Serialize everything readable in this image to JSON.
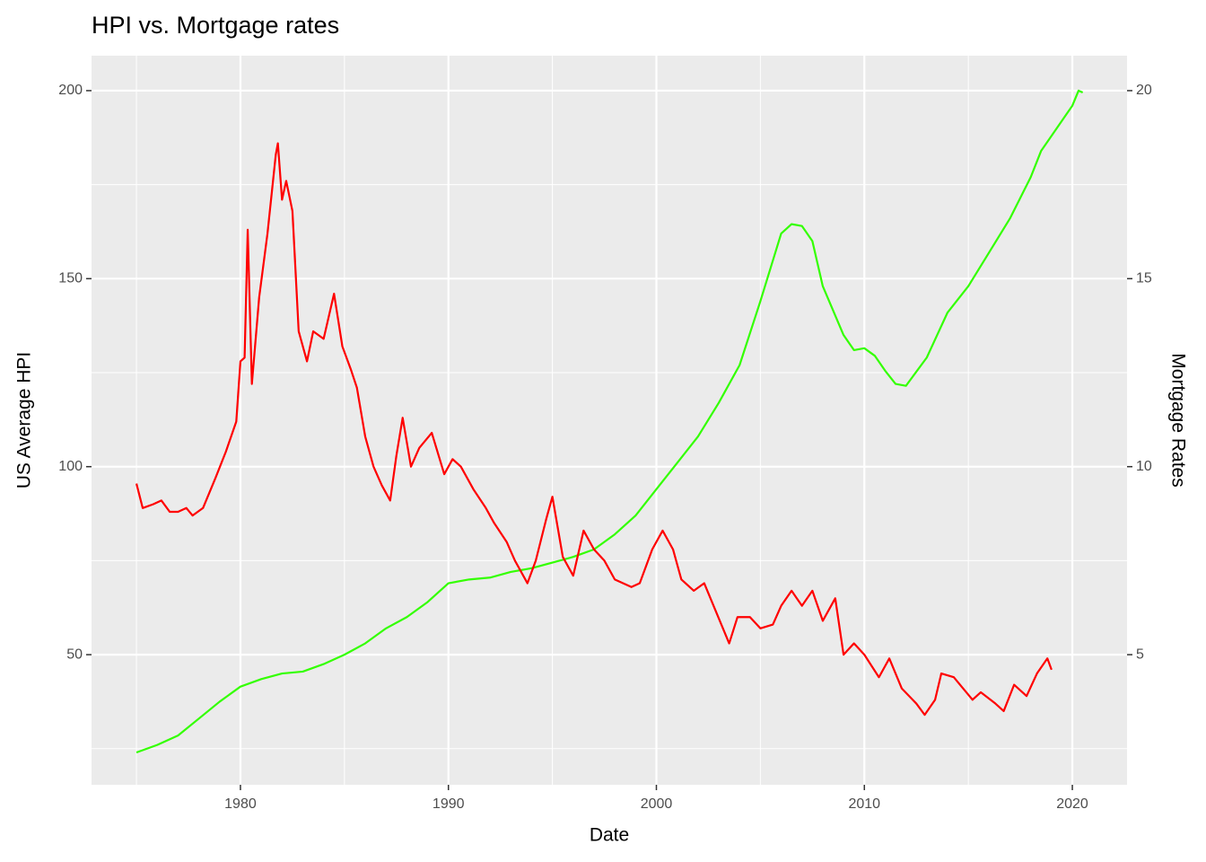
{
  "chart_data": {
    "type": "line",
    "title": "HPI vs. Mortgage rates",
    "x_label": "Date",
    "y_label": "US Average HPI",
    "y2_label": "Mortgage Rates",
    "xlim": [
      1972.84,
      2022.63
    ],
    "xticks": [
      1980,
      1990,
      2000,
      2010,
      2020
    ],
    "x_minor_ticks": [
      1975,
      1985,
      1995,
      2005,
      2015
    ],
    "ylim": [
      15.4,
      209.3
    ],
    "yticks": [
      50,
      100,
      150,
      200
    ],
    "y_minor_ticks": [
      25,
      75,
      125,
      175
    ],
    "y2lim": [
      1.54,
      20.93
    ],
    "y2ticks": [
      5,
      10,
      15,
      20
    ],
    "grid": true,
    "series": [
      {
        "color": "#33ff00",
        "x": [
          1975,
          1976,
          1977,
          1978,
          1979,
          1980,
          1981,
          1982,
          1983,
          1984,
          1985,
          1986,
          1987,
          1988,
          1989,
          1990,
          1991,
          1992,
          1993,
          1994,
          1995,
          1996,
          1997,
          1998,
          1999,
          2000,
          2001,
          2002,
          2003,
          2004,
          2005,
          2006,
          2006.5,
          2007,
          2007.5,
          2008,
          2009,
          2009.5,
          2010,
          2010.5,
          2011,
          2011.5,
          2012,
          2013,
          2014,
          2015,
          2016,
          2017,
          2018,
          2018.5,
          2019,
          2020,
          2020.3,
          2020.5
        ],
        "values": [
          24,
          26,
          28.5,
          33,
          37.5,
          41.5,
          43.5,
          45,
          45.5,
          47.5,
          50,
          53,
          57,
          60,
          64,
          69,
          70,
          70.5,
          72,
          73,
          74.5,
          76,
          78,
          82,
          87,
          94,
          101,
          108,
          117,
          127,
          144,
          162,
          164.5,
          164,
          160,
          148,
          135,
          131,
          131.5,
          129.5,
          125.5,
          122,
          121.5,
          129,
          141,
          148,
          157,
          166,
          177,
          184,
          188,
          196,
          200,
          199.5
        ]
      },
      {
        "color": "#ff0000",
        "axis": "y2",
        "x": [
          1975.0,
          1975.3,
          1975.8,
          1976.2,
          1976.6,
          1977.0,
          1977.4,
          1977.7,
          1978.2,
          1978.8,
          1979.3,
          1979.8,
          1980.0,
          1980.2,
          1980.35,
          1980.55,
          1980.9,
          1981.3,
          1981.7,
          1981.8,
          1982.0,
          1982.2,
          1982.5,
          1982.8,
          1983.2,
          1983.5,
          1984.0,
          1984.5,
          1984.9,
          1985.3,
          1985.6,
          1986.0,
          1986.4,
          1986.8,
          1987.2,
          1987.5,
          1987.8,
          1988.2,
          1988.6,
          1989.2,
          1989.8,
          1990.2,
          1990.6,
          1991.2,
          1991.8,
          1992.2,
          1992.8,
          1993.2,
          1993.8,
          1994.2,
          1994.7,
          1995.0,
          1995.5,
          1996.0,
          1996.5,
          1997.0,
          1997.5,
          1998.0,
          1998.8,
          1999.2,
          1999.8,
          2000.3,
          2000.8,
          2001.2,
          2001.8,
          2002.3,
          2002.9,
          2003.5,
          2003.9,
          2004.5,
          2005.0,
          2005.6,
          2006.0,
          2006.5,
          2007.0,
          2007.5,
          2008.0,
          2008.6,
          2009.0,
          2009.5,
          2010.0,
          2010.7,
          2011.2,
          2011.8,
          2012.5,
          2012.9,
          2013.4,
          2013.7,
          2014.3,
          2014.9,
          2015.2,
          2015.6,
          2016.3,
          2016.7,
          2017.2,
          2017.8,
          2018.3,
          2018.8,
          2019.0
        ],
        "values": [
          9.55,
          8.9,
          9.0,
          9.1,
          8.8,
          8.8,
          8.9,
          8.7,
          8.9,
          9.7,
          10.4,
          11.2,
          12.8,
          12.9,
          16.3,
          12.2,
          14.5,
          16.2,
          18.3,
          18.6,
          17.1,
          17.6,
          16.8,
          13.6,
          12.8,
          13.6,
          13.4,
          14.6,
          13.2,
          12.6,
          12.1,
          10.8,
          10.0,
          9.5,
          9.1,
          10.3,
          11.3,
          10.0,
          10.5,
          10.9,
          9.8,
          10.2,
          10.0,
          9.4,
          8.9,
          8.5,
          8.0,
          7.5,
          6.9,
          7.5,
          8.6,
          9.2,
          7.6,
          7.1,
          8.3,
          7.8,
          7.5,
          7.0,
          6.8,
          6.9,
          7.8,
          8.3,
          7.8,
          7.0,
          6.7,
          6.9,
          6.1,
          5.3,
          6.0,
          6.0,
          5.7,
          5.8,
          6.3,
          6.7,
          6.3,
          6.7,
          5.9,
          6.5,
          5.0,
          5.3,
          5.0,
          4.4,
          4.9,
          4.1,
          3.7,
          3.4,
          3.8,
          4.5,
          4.4,
          4.0,
          3.8,
          4.0,
          3.7,
          3.5,
          4.2,
          3.9,
          4.5,
          4.9,
          4.6
        ]
      }
    ]
  }
}
